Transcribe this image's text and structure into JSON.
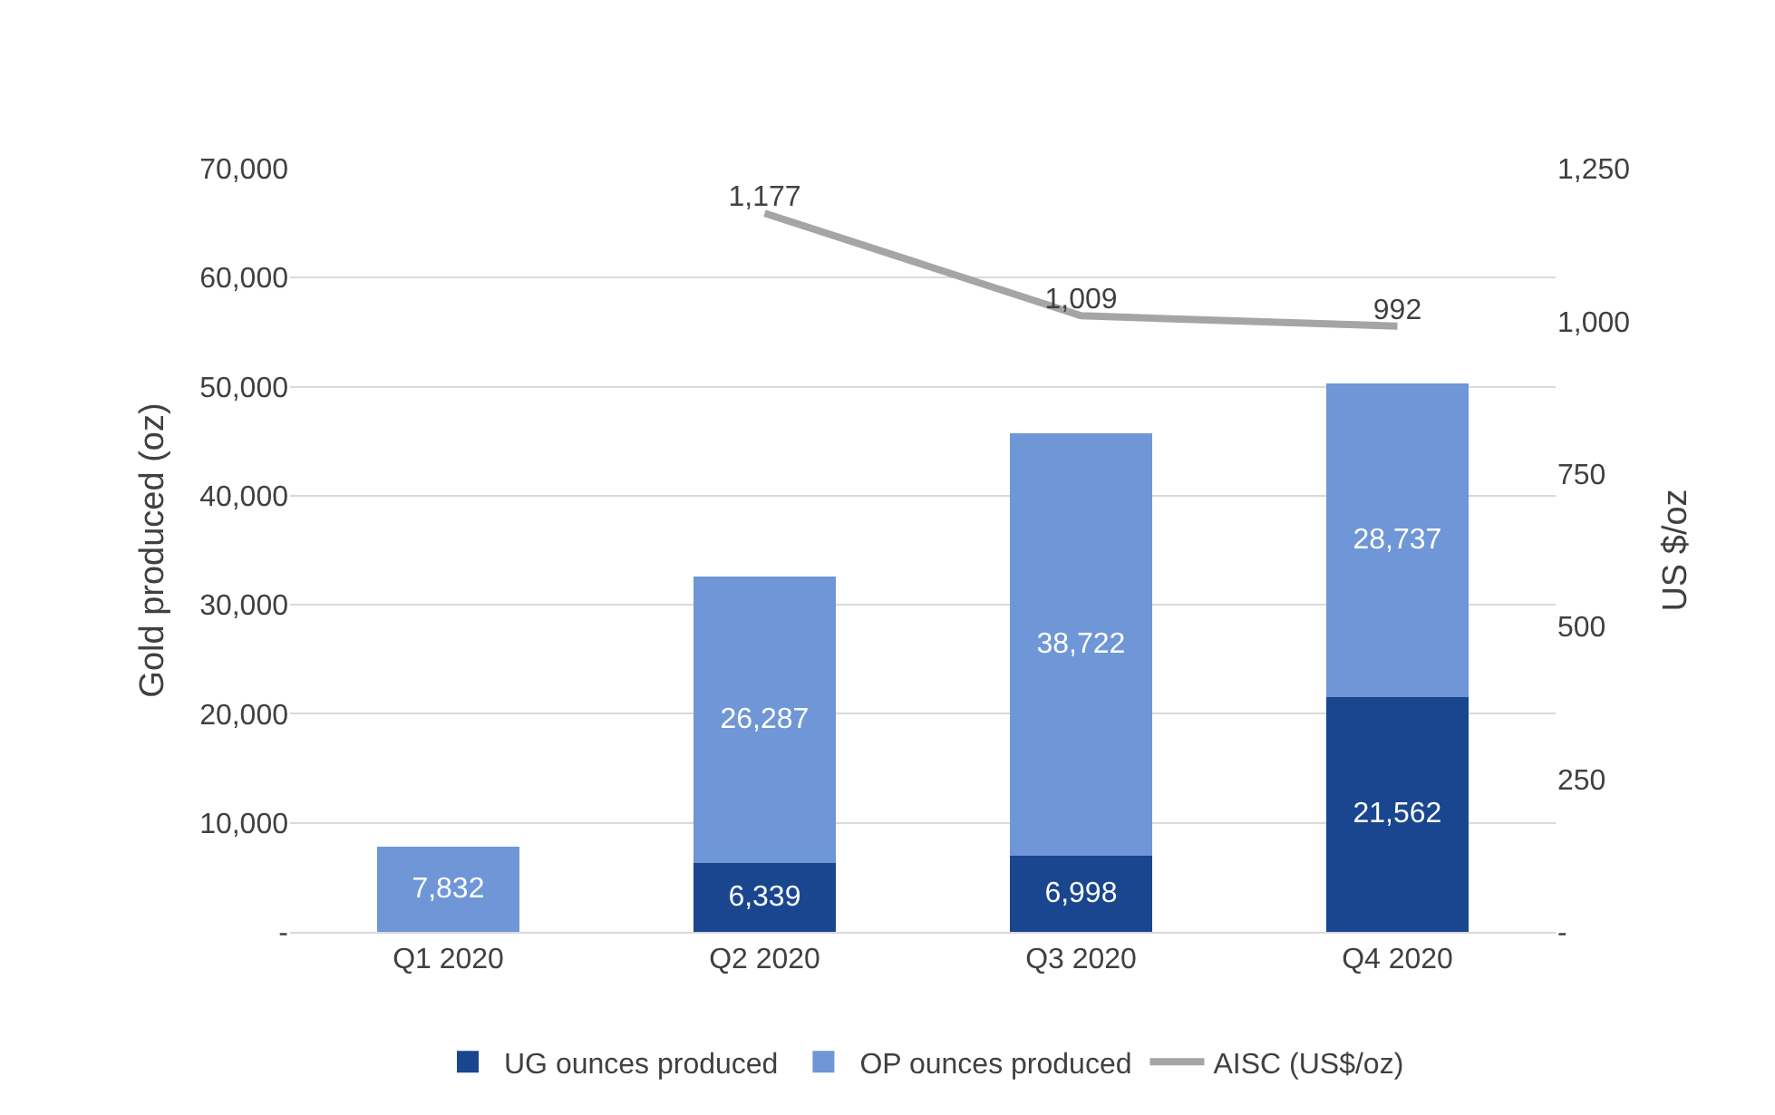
{
  "chart_data": {
    "type": "bar",
    "stacked": true,
    "ylabel": "Gold produced (oz)",
    "y2label": "US $/oz",
    "categories": [
      "Q1 2020",
      "Q2 2020",
      "Q3 2020",
      "Q4 2020"
    ],
    "series": [
      {
        "name": "UG ounces produced",
        "color": "#1a4690",
        "values": [
          null,
          6339,
          6998,
          21562
        ],
        "value_labels": [
          null,
          "6,339",
          "6,998",
          "21,562"
        ]
      },
      {
        "name": "OP ounces produced",
        "color": "#6f96d6",
        "values": [
          7832,
          26287,
          38722,
          28737
        ],
        "value_labels": [
          "7,832",
          "26,287",
          "38,722",
          "28,737"
        ]
      },
      {
        "name": "AISC (US$/oz)",
        "type": "line",
        "axis": "y2",
        "color": "#a5a5a5",
        "values": [
          null,
          1177,
          1009,
          992
        ],
        "value_labels": [
          null,
          "1,177",
          "1,009",
          "992"
        ]
      }
    ],
    "ylim": [
      0,
      70000
    ],
    "yticks": [
      {
        "value": 0,
        "label": "-"
      },
      {
        "value": 10000,
        "label": "10,000"
      },
      {
        "value": 20000,
        "label": "20,000"
      },
      {
        "value": 30000,
        "label": "30,000"
      },
      {
        "value": 40000,
        "label": "40,000"
      },
      {
        "value": 50000,
        "label": "50,000"
      },
      {
        "value": 60000,
        "label": "60,000"
      },
      {
        "value": 70000,
        "label": "70,000"
      }
    ],
    "y2lim": [
      0,
      1250
    ],
    "y2ticks": [
      {
        "value": 0,
        "label": "-"
      },
      250,
      500,
      750,
      {
        "value": 1000,
        "label": "1,000"
      },
      {
        "value": 1250,
        "label": "1,250"
      }
    ],
    "grid": "y",
    "legend": "bottom",
    "marker": "none",
    "line_style": "solid"
  }
}
